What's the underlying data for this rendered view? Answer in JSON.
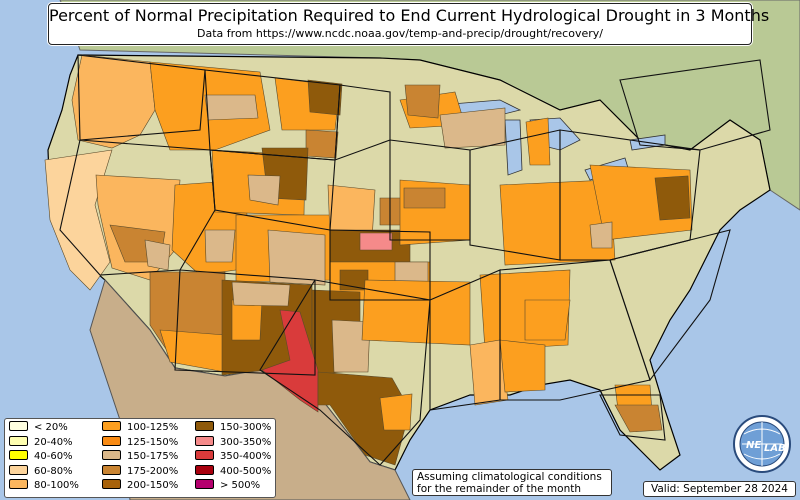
{
  "title": "Percent of Normal Precipitation Required to End Current Hydrological Drought in 3 Months",
  "subtitle": "Data from https://www.ncdc.noaa.gov/temp-and-precip/drought/recovery/",
  "note_lines": [
    "Assuming climatological conditions",
    "for the remainder of the month"
  ],
  "valid": "Valid: September 28 2024",
  "logo_text": [
    "NE",
    "LAB"
  ],
  "colors": {
    "ocean": "#a9c6e8",
    "land": "#dcd9a9",
    "land_green": "#b9c995",
    "mountain": "#c8ae8a",
    "border": "#111111"
  },
  "legend": [
    {
      "label": "< 20%",
      "color": "#fefee0"
    },
    {
      "label": "20-40%",
      "color": "#fefeb0"
    },
    {
      "label": "40-60%",
      "color": "#ffff00"
    },
    {
      "label": "60-80%",
      "color": "#fcd49c"
    },
    {
      "label": "80-100%",
      "color": "#fbb65e"
    },
    {
      "label": "100-125%",
      "color": "#fc9f1f"
    },
    {
      "label": "125-150%",
      "color": "#f98b14"
    },
    {
      "label": "150-175%",
      "color": "#dbb88a"
    },
    {
      "label": "175-200%",
      "color": "#c98432"
    },
    {
      "label": "200-150%",
      "color": "#a8620a"
    },
    {
      "label": "150-300%",
      "color": "#8f5a0b"
    },
    {
      "label": "300-350%",
      "color": "#f58a8a"
    },
    {
      "label": "350-400%",
      "color": "#d93b3b"
    },
    {
      "label": "400-500%",
      "color": "#a8000e"
    },
    {
      "label": "> 500%",
      "color": "#b4006e"
    }
  ],
  "regions": [
    {
      "cat": "80-100%",
      "pts": [
        [
          82,
          55
        ],
        [
          150,
          62
        ],
        [
          155,
          110
        ],
        [
          140,
          135
        ],
        [
          112,
          148
        ],
        [
          78,
          140
        ],
        [
          72,
          100
        ]
      ]
    },
    {
      "cat": "100-125%",
      "pts": [
        [
          150,
          62
        ],
        [
          260,
          72
        ],
        [
          270,
          130
        ],
        [
          215,
          150
        ],
        [
          170,
          150
        ],
        [
          155,
          110
        ]
      ]
    },
    {
      "cat": "150-175%",
      "pts": [
        [
          205,
          95
        ],
        [
          255,
          95
        ],
        [
          258,
          118
        ],
        [
          208,
          120
        ]
      ]
    },
    {
      "cat": "100-125%",
      "pts": [
        [
          275,
          78
        ],
        [
          340,
          86
        ],
        [
          335,
          130
        ],
        [
          282,
          130
        ]
      ]
    },
    {
      "cat": "150-300%",
      "pts": [
        [
          308,
          80
        ],
        [
          342,
          84
        ],
        [
          340,
          115
        ],
        [
          310,
          112
        ]
      ]
    },
    {
      "cat": "175-200%",
      "pts": [
        [
          306,
          130
        ],
        [
          338,
          132
        ],
        [
          336,
          158
        ],
        [
          306,
          156
        ]
      ]
    },
    {
      "cat": "60-80%",
      "pts": [
        [
          45,
          160
        ],
        [
          112,
          150
        ],
        [
          95,
          205
        ],
        [
          110,
          262
        ],
        [
          90,
          290
        ],
        [
          70,
          270
        ],
        [
          50,
          220
        ]
      ]
    },
    {
      "cat": "80-100%",
      "pts": [
        [
          96,
          175
        ],
        [
          180,
          180
        ],
        [
          175,
          250
        ],
        [
          150,
          280
        ],
        [
          112,
          268
        ],
        [
          98,
          205
        ]
      ]
    },
    {
      "cat": "175-200%",
      "pts": [
        [
          110,
          225
        ],
        [
          165,
          232
        ],
        [
          160,
          262
        ],
        [
          125,
          262
        ]
      ]
    },
    {
      "cat": "150-175%",
      "pts": [
        [
          145,
          240
        ],
        [
          170,
          245
        ],
        [
          168,
          270
        ],
        [
          148,
          266
        ]
      ]
    },
    {
      "cat": "100-125%",
      "pts": [
        [
          175,
          185
        ],
        [
          245,
          180
        ],
        [
          250,
          268
        ],
        [
          200,
          275
        ],
        [
          172,
          250
        ]
      ]
    },
    {
      "cat": "100-125%",
      "pts": [
        [
          212,
          150
        ],
        [
          305,
          155
        ],
        [
          304,
          215
        ],
        [
          215,
          212
        ]
      ]
    },
    {
      "cat": "150-300%",
      "pts": [
        [
          262,
          148
        ],
        [
          308,
          148
        ],
        [
          306,
          200
        ],
        [
          268,
          198
        ]
      ]
    },
    {
      "cat": "150-175%",
      "pts": [
        [
          248,
          175
        ],
        [
          280,
          176
        ],
        [
          278,
          205
        ],
        [
          250,
          200
        ]
      ]
    },
    {
      "cat": "150-175%",
      "pts": [
        [
          205,
          230
        ],
        [
          235,
          230
        ],
        [
          232,
          262
        ],
        [
          206,
          262
        ]
      ]
    },
    {
      "cat": "100-125%",
      "pts": [
        [
          236,
          215
        ],
        [
          330,
          215
        ],
        [
          330,
          280
        ],
        [
          236,
          282
        ]
      ]
    },
    {
      "cat": "150-175%",
      "pts": [
        [
          268,
          230
        ],
        [
          325,
          235
        ],
        [
          325,
          285
        ],
        [
          270,
          282
        ]
      ]
    },
    {
      "cat": "80-100%",
      "pts": [
        [
          328,
          185
        ],
        [
          375,
          190
        ],
        [
          372,
          240
        ],
        [
          330,
          236
        ]
      ]
    },
    {
      "cat": "150-300%",
      "pts": [
        [
          330,
          230
        ],
        [
          410,
          230
        ],
        [
          410,
          262
        ],
        [
          330,
          262
        ]
      ]
    },
    {
      "cat": "300-350%",
      "pts": [
        [
          360,
          233
        ],
        [
          392,
          233
        ],
        [
          392,
          250
        ],
        [
          360,
          250
        ]
      ]
    },
    {
      "cat": "175-200%",
      "pts": [
        [
          380,
          198
        ],
        [
          412,
          198
        ],
        [
          412,
          225
        ],
        [
          380,
          225
        ]
      ]
    },
    {
      "cat": "100-125%",
      "pts": [
        [
          330,
          262
        ],
        [
          430,
          262
        ],
        [
          430,
          300
        ],
        [
          330,
          300
        ]
      ]
    },
    {
      "cat": "150-300%",
      "pts": [
        [
          340,
          270
        ],
        [
          368,
          270
        ],
        [
          368,
          290
        ],
        [
          340,
          290
        ]
      ]
    },
    {
      "cat": "150-175%",
      "pts": [
        [
          395,
          262
        ],
        [
          428,
          262
        ],
        [
          428,
          282
        ],
        [
          395,
          282
        ]
      ]
    },
    {
      "cat": "175-200%",
      "pts": [
        [
          150,
          272
        ],
        [
          225,
          272
        ],
        [
          225,
          345
        ],
        [
          168,
          352
        ],
        [
          150,
          325
        ]
      ]
    },
    {
      "cat": "100-125%",
      "pts": [
        [
          160,
          330
        ],
        [
          225,
          335
        ],
        [
          225,
          372
        ],
        [
          170,
          362
        ]
      ]
    },
    {
      "cat": "150-300%",
      "pts": [
        [
          222,
          280
        ],
        [
          312,
          285
        ],
        [
          312,
          365
        ],
        [
          222,
          375
        ]
      ]
    },
    {
      "cat": "100-125%",
      "pts": [
        [
          232,
          300
        ],
        [
          262,
          300
        ],
        [
          260,
          340
        ],
        [
          232,
          340
        ]
      ]
    },
    {
      "cat": "150-175%",
      "pts": [
        [
          232,
          282
        ],
        [
          290,
          285
        ],
        [
          288,
          306
        ],
        [
          234,
          305
        ]
      ]
    },
    {
      "cat": "150-300%",
      "pts": [
        [
          312,
          290
        ],
        [
          360,
          292
        ],
        [
          360,
          370
        ],
        [
          312,
          375
        ]
      ]
    },
    {
      "cat": "350-400%",
      "pts": [
        [
          280,
          310
        ],
        [
          300,
          312
        ],
        [
          318,
          370
        ],
        [
          318,
          412
        ],
        [
          300,
          400
        ],
        [
          262,
          370
        ],
        [
          290,
          360
        ]
      ]
    },
    {
      "cat": "150-300%",
      "pts": [
        [
          318,
          372
        ],
        [
          392,
          378
        ],
        [
          410,
          410
        ],
        [
          395,
          465
        ],
        [
          365,
          455
        ],
        [
          330,
          405
        ],
        [
          318,
          405
        ]
      ]
    },
    {
      "cat": "150-175%",
      "pts": [
        [
          332,
          320
        ],
        [
          370,
          322
        ],
        [
          368,
          372
        ],
        [
          334,
          372
        ]
      ]
    },
    {
      "cat": "100-125%",
      "pts": [
        [
          365,
          280
        ],
        [
          470,
          282
        ],
        [
          470,
          345
        ],
        [
          362,
          340
        ]
      ]
    },
    {
      "cat": "100-125%",
      "pts": [
        [
          380,
          398
        ],
        [
          412,
          394
        ],
        [
          410,
          430
        ],
        [
          384,
          430
        ]
      ]
    },
    {
      "cat": "100-125%",
      "pts": [
        [
          400,
          100
        ],
        [
          455,
          92
        ],
        [
          465,
          125
        ],
        [
          410,
          128
        ]
      ]
    },
    {
      "cat": "175-200%",
      "pts": [
        [
          405,
          85
        ],
        [
          440,
          85
        ],
        [
          438,
          118
        ],
        [
          408,
          115
        ]
      ]
    },
    {
      "cat": "150-175%",
      "pts": [
        [
          440,
          115
        ],
        [
          505,
          108
        ],
        [
          505,
          145
        ],
        [
          445,
          148
        ]
      ]
    },
    {
      "cat": "100-125%",
      "pts": [
        [
          400,
          180
        ],
        [
          470,
          185
        ],
        [
          470,
          240
        ],
        [
          400,
          245
        ]
      ]
    },
    {
      "cat": "175-200%",
      "pts": [
        [
          404,
          188
        ],
        [
          445,
          188
        ],
        [
          445,
          208
        ],
        [
          404,
          208
        ]
      ]
    },
    {
      "cat": "100-125%",
      "pts": [
        [
          526,
          122
        ],
        [
          548,
          118
        ],
        [
          550,
          165
        ],
        [
          530,
          165
        ]
      ]
    },
    {
      "cat": "100-125%",
      "pts": [
        [
          500,
          185
        ],
        [
          610,
          180
        ],
        [
          615,
          260
        ],
        [
          505,
          265
        ]
      ]
    },
    {
      "cat": "100-125%",
      "pts": [
        [
          590,
          165
        ],
        [
          690,
          170
        ],
        [
          692,
          230
        ],
        [
          605,
          240
        ]
      ]
    },
    {
      "cat": "150-175%",
      "pts": [
        [
          590,
          225
        ],
        [
          612,
          222
        ],
        [
          612,
          248
        ],
        [
          592,
          248
        ]
      ]
    },
    {
      "cat": "100-125%",
      "pts": [
        [
          480,
          275
        ],
        [
          570,
          270
        ],
        [
          568,
          345
        ],
        [
          485,
          350
        ]
      ]
    },
    {
      "cat": "80-100%",
      "pts": [
        [
          470,
          345
        ],
        [
          500,
          340
        ],
        [
          508,
          400
        ],
        [
          475,
          405
        ]
      ]
    },
    {
      "cat": "100-125%",
      "pts": [
        [
          500,
          340
        ],
        [
          545,
          345
        ],
        [
          545,
          390
        ],
        [
          505,
          392
        ]
      ]
    },
    {
      "cat": "100-125%",
      "pts": [
        [
          525,
          300
        ],
        [
          570,
          300
        ],
        [
          565,
          340
        ],
        [
          525,
          340
        ]
      ]
    },
    {
      "cat": "100-125%",
      "pts": [
        [
          615,
          385
        ],
        [
          650,
          385
        ],
        [
          652,
          412
        ],
        [
          618,
          410
        ]
      ]
    },
    {
      "cat": "175-200%",
      "pts": [
        [
          615,
          405
        ],
        [
          658,
          405
        ],
        [
          662,
          430
        ],
        [
          630,
          432
        ]
      ]
    },
    {
      "cat": "150-300%",
      "pts": [
        [
          655,
          178
        ],
        [
          688,
          176
        ],
        [
          690,
          218
        ],
        [
          660,
          220
        ]
      ]
    }
  ],
  "states": [
    [
      [
        78,
        55
      ],
      [
        205,
        70
      ],
      [
        200,
        130
      ],
      [
        80,
        140
      ]
    ],
    [
      [
        205,
        70
      ],
      [
        340,
        85
      ],
      [
        335,
        160
      ],
      [
        210,
        150
      ]
    ],
    [
      [
        340,
        85
      ],
      [
        390,
        92
      ],
      [
        390,
        140
      ],
      [
        335,
        160
      ]
    ],
    [
      [
        80,
        140
      ],
      [
        210,
        150
      ],
      [
        215,
        210
      ],
      [
        180,
        270
      ],
      [
        100,
        275
      ],
      [
        60,
        230
      ]
    ],
    [
      [
        210,
        150
      ],
      [
        335,
        160
      ],
      [
        330,
        230
      ],
      [
        215,
        210
      ]
    ],
    [
      [
        330,
        230
      ],
      [
        430,
        232
      ],
      [
        430,
        300
      ],
      [
        330,
        300
      ]
    ],
    [
      [
        390,
        140
      ],
      [
        470,
        150
      ],
      [
        470,
        240
      ],
      [
        390,
        240
      ]
    ],
    [
      [
        180,
        270
      ],
      [
        315,
        280
      ],
      [
        315,
        375
      ],
      [
        175,
        370
      ]
    ],
    [
      [
        315,
        280
      ],
      [
        430,
        300
      ],
      [
        420,
        420
      ],
      [
        380,
        465
      ],
      [
        320,
        410
      ],
      [
        260,
        370
      ]
    ],
    [
      [
        430,
        300
      ],
      [
        500,
        270
      ],
      [
        500,
        400
      ],
      [
        430,
        410
      ]
    ],
    [
      [
        470,
        150
      ],
      [
        560,
        130
      ],
      [
        560,
        260
      ],
      [
        470,
        245
      ]
    ],
    [
      [
        500,
        270
      ],
      [
        610,
        260
      ],
      [
        650,
        380
      ],
      [
        560,
        400
      ],
      [
        500,
        400
      ]
    ],
    [
      [
        560,
        130
      ],
      [
        700,
        150
      ],
      [
        690,
        240
      ],
      [
        610,
        260
      ],
      [
        560,
        260
      ]
    ],
    [
      [
        690,
        240
      ],
      [
        730,
        230
      ],
      [
        710,
        300
      ],
      [
        650,
        380
      ],
      [
        610,
        260
      ]
    ],
    [
      [
        600,
        395
      ],
      [
        660,
        395
      ],
      [
        665,
        440
      ],
      [
        620,
        435
      ]
    ],
    [
      [
        620,
        80
      ],
      [
        760,
        60
      ],
      [
        770,
        130
      ],
      [
        700,
        150
      ],
      [
        640,
        145
      ]
    ]
  ]
}
